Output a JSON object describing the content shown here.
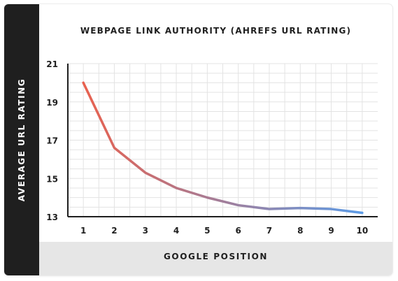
{
  "chart_data": {
    "type": "line",
    "title": "WEBPAGE LINK AUTHORITY (AHREFS URL RATING)",
    "xlabel": "GOOGLE POSITION",
    "ylabel": "AVERAGE URL RATING",
    "x": [
      1,
      2,
      3,
      4,
      5,
      6,
      7,
      8,
      9,
      10
    ],
    "y": [
      20.0,
      16.6,
      15.3,
      14.5,
      14.0,
      13.6,
      13.4,
      13.45,
      13.4,
      13.2
    ],
    "xlim": [
      0.5,
      10.5
    ],
    "ylim": [
      13,
      21
    ],
    "yticks": [
      13,
      15,
      17,
      19,
      21
    ],
    "grid": true,
    "line_gradient": [
      "#e8614f",
      "#5c9be6"
    ]
  }
}
